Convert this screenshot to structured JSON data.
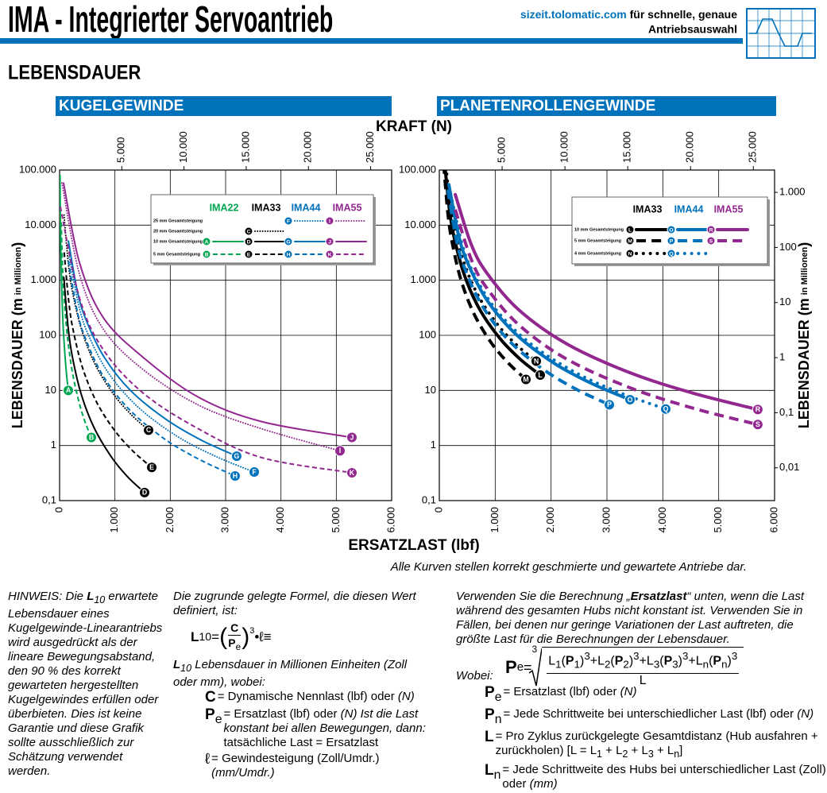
{
  "header": {
    "title": "IMA - Integrierter Servoantrieb",
    "url": "sizeit.tolomatic.com",
    "tagline_1": " für schnelle, genaue",
    "tagline_2": "Antriebsauswahl"
  },
  "section": "LEBENSDAUER",
  "shared_axis_labels": {
    "top": "KRAFT (N)",
    "bottom": "ERSATZLAST (lbf)"
  },
  "footnote": "Alle Kurven stellen korrekt geschmierte und gewartete Antriebe dar.",
  "chart_data": [
    {
      "type": "line",
      "title": "KUGELGEWINDE",
      "y_scale": "log",
      "grid": true,
      "line_width": 2,
      "xlim": [
        0,
        6000
      ],
      "xticks": [
        0,
        {
          "value": 1000,
          "label": "1.000"
        },
        {
          "value": 2000,
          "label": "2.000"
        },
        {
          "value": 3000,
          "label": "3.000"
        },
        {
          "value": 4000,
          "label": "4.000"
        },
        {
          "value": 5000,
          "label": "5.000"
        },
        {
          "value": 6000,
          "label": "6.000"
        }
      ],
      "x2lim": [
        0,
        26689
      ],
      "x2ticks": [
        {
          "value": 5000,
          "label": "5.000"
        },
        {
          "value": 10000,
          "label": "10.000"
        },
        {
          "value": 15000,
          "label": "15.000"
        },
        {
          "value": 20000,
          "label": "20.000"
        },
        {
          "value": 25000,
          "label": "25.000"
        }
      ],
      "ylim": [
        0.1,
        100000
      ],
      "yticks": [
        {
          "value": 0.1,
          "label": "0,1"
        },
        1,
        10,
        100,
        {
          "value": 1000,
          "label": "1.000"
        },
        {
          "value": 10000,
          "label": "10.000"
        },
        {
          "value": 100000,
          "label": "100.000"
        }
      ],
      "y_label": [
        "LEBENSDAUER (m",
        "in Millionen",
        ")"
      ],
      "legend_rows": [
        {
          "label": "25 mm Gesamtsteigung",
          "dash": "dotted"
        },
        {
          "label": "20 mm Gesamtsteigung",
          "dash": "dotted"
        },
        {
          "label": "10 mm Gesamtsteigung",
          "dash": "solid"
        },
        {
          "label": "5 mm Gesamtsteigung",
          "dash": "dashed"
        }
      ],
      "models": [
        {
          "name": "IMA22",
          "color": "#00a651",
          "curves": [
            {
              "label": "A",
              "lead": "10 mm Gesamtsteigung",
              "x": [
                8,
                16,
                24,
                40,
                63,
                95,
                126,
                158
              ],
              "values": [
                80000,
                10000,
                2960,
                640,
                156,
                46.3,
                19.5,
                10
              ]
            },
            {
              "label": "B",
              "lead": "5 mm Gesamtsteigung",
              "x": [
                29,
                57,
                86,
                144,
                230,
                344,
                459,
                574
              ],
              "values": [
                11200,
                1400,
                414,
                90,
                21.8,
                6.5,
                2.7,
                1.4
              ]
            }
          ]
        },
        {
          "name": "IMA33",
          "color": "#000000",
          "curves": [
            {
              "label": "C",
              "lead": "20 mm Gesamtsteigung",
              "x": [
                80,
                161,
                241,
                402,
                643,
                965,
                1286,
                1608
              ],
              "values": [
                15200,
                1900,
                562,
                122,
                29.6,
                8.8,
                3.7,
                1.9
              ]
            },
            {
              "label": "D",
              "lead": "10 mm Gesamtsteigung",
              "x": [
                77,
                154,
                230,
                384,
                614,
                922,
                1229,
                1536
              ],
              "values": [
                1120,
                140,
                41.4,
                9,
                2.2,
                0.65,
                0.27,
                0.14
              ]
            },
            {
              "label": "E",
              "lead": "5 mm Gesamtsteigung",
              "x": [
                83,
                167,
                250,
                416,
                666,
                999,
                1332,
                1665
              ],
              "values": [
                3200,
                400,
                118,
                25.6,
                6.2,
                1.85,
                0.78,
                0.4
              ]
            }
          ]
        },
        {
          "name": "IMA44",
          "color": "#0072bc",
          "curves": [
            {
              "label": "F",
              "lead": "25 mm Gesamtsteigung",
              "x": [
                176,
                352,
                528,
                879,
                1407,
                2110,
                2814,
                3517
              ],
              "values": [
                2640,
                330,
                98,
                21,
                5.1,
                1.5,
                0.64,
                0.33
              ]
            },
            {
              "label": "G",
              "lead": "10 mm Gesamtsteigung",
              "x": [
                160,
                320,
                480,
                800,
                1280,
                1920,
                2560,
                3200
              ],
              "values": [
                5120,
                640,
                189,
                41,
                10,
                3,
                1.25,
                0.64
              ]
            },
            {
              "label": "H",
              "lead": "5 mm Gesamtsteigung",
              "x": [
                159,
                317,
                476,
                793,
                1269,
                1903,
                2538,
                3172
              ],
              "values": [
                2240,
                280,
                83,
                17.9,
                4.4,
                1.3,
                0.55,
                0.28
              ]
            }
          ]
        },
        {
          "name": "IMA55",
          "color": "#92278f",
          "curves": [
            {
              "label": "I",
              "lead": "25 mm Gesamtsteigung",
              "x": [
                43,
                359,
                789,
                1507,
                2512,
                3660,
                5067
              ],
              "values": [
                58000,
                1300,
                130,
                24,
                5.4,
                2,
                0.8
              ]
            },
            {
              "label": "J",
              "lead": "10 mm Gesamtsteigung",
              "x": [
                72,
                359,
                789,
                1507,
                2512,
                3660,
                5282
              ],
              "values": [
                58000,
                2100,
                210,
                40,
                7.5,
                2.7,
                1.4
              ]
            },
            {
              "label": "K",
              "lead": "5 mm Gesamtsteigung",
              "x": [
                14,
                359,
                789,
                1507,
                2512,
                3660,
                5282
              ],
              "values": [
                21700,
                480,
                55,
                9,
                2,
                0.6,
                0.32
              ]
            }
          ]
        }
      ]
    },
    {
      "type": "line",
      "title": "PLANETENROLLENGEWINDE",
      "y_scale": "log",
      "y2_scale": "log",
      "grid": true,
      "line_width": 4,
      "xlim": [
        0,
        6000
      ],
      "xticks": [
        0,
        {
          "value": 1000,
          "label": "1.000"
        },
        {
          "value": 2000,
          "label": "2.000"
        },
        {
          "value": 3000,
          "label": "3.000"
        },
        {
          "value": 4000,
          "label": "4.000"
        },
        {
          "value": 5000,
          "label": "5.000"
        },
        {
          "value": 6000,
          "label": "6.000"
        }
      ],
      "x2lim": [
        0,
        26689
      ],
      "x2ticks": [
        {
          "value": 5000,
          "label": "5.000"
        },
        {
          "value": 10000,
          "label": "10.000"
        },
        {
          "value": 15000,
          "label": "15.000"
        },
        {
          "value": 20000,
          "label": "20.000"
        },
        {
          "value": 25000,
          "label": "25.000"
        }
      ],
      "ylim": [
        0.1,
        100000
      ],
      "yticks": [
        {
          "value": 0.1,
          "label": "0,1"
        },
        1,
        10,
        100,
        {
          "value": 1000,
          "label": "1.000"
        },
        {
          "value": 10000,
          "label": "10.000"
        },
        {
          "value": 100000,
          "label": "100.000"
        }
      ],
      "y2lim": [
        0.00254,
        2540
      ],
      "y2ticks": [
        {
          "value": 0.01,
          "label": "0,01"
        },
        {
          "value": 0.1,
          "label": "0,1"
        },
        1,
        10,
        100,
        {
          "value": 1000,
          "label": "1.000"
        }
      ],
      "y2_label": [
        "LEBENSDAUER (m",
        "in Millionen",
        ")"
      ],
      "legend_rows": [
        {
          "label": "10 mm Gesamtsteigung",
          "dash": "solid"
        },
        {
          "label": "5 mm Gesamtsteigung",
          "dash": "dashed"
        },
        {
          "label": "4 mm Gesamtsteigung",
          "dash": "dotted"
        }
      ],
      "models": [
        {
          "name": "IMA33",
          "color": "#000000",
          "curves": [
            {
              "label": "L",
              "lead": "10 mm Gesamtsteigung",
              "x": [
                90,
                181,
                271,
                452,
                722,
                1084,
                1445,
                1806
              ],
              "values": [
                152000,
                19000,
                5620,
                1216,
                296,
                88,
                37,
                19
              ]
            },
            {
              "label": "M",
              "lead": "5 mm Gesamtsteigung",
              "x": [
                78,
                155,
                233,
                388,
                620,
                930,
                1240,
                1550
              ],
              "values": [
                126400,
                15800,
                4680,
                1011,
                246,
                73,
                31,
                15.8
              ]
            },
            {
              "label": "N",
              "lead": "4 mm Gesamtsteigung",
              "x": [
                87,
                174,
                260,
                434,
                694,
                1041,
                1388,
                1735
              ],
              "values": [
                272000,
                34000,
                10060,
                2176,
                530,
                157,
                66,
                34
              ]
            }
          ]
        },
        {
          "name": "IMA44",
          "color": "#0072bc",
          "curves": [
            {
              "label": "O",
              "lead": "10 mm Gesamtsteigung",
              "x": [
                171,
                341,
                512,
                853,
                1365,
                2047,
                2730,
                3412
              ],
              "values": [
                54400,
                6800,
                2010,
                435,
                106,
                31.5,
                13.3,
                6.8
              ]
            },
            {
              "label": "P",
              "lead": "5 mm Gesamtsteigung",
              "x": [
                152,
                304,
                456,
                761,
                1217,
                1826,
                2434,
                3043
              ],
              "values": [
                44000,
                5500,
                1628,
                352,
                86,
                25.5,
                10.7,
                5.5
              ]
            },
            {
              "label": "Q",
              "lead": "4 mm Gesamtsteigung",
              "x": [
                203,
                405,
                608,
                1013,
                1621,
                2431,
                3242,
                4052
              ],
              "values": [
                36800,
                4600,
                1360,
                294,
                72,
                21.3,
                9,
                4.6
              ]
            }
          ]
        },
        {
          "name": "IMA55",
          "color": "#92278f",
          "curves": [
            {
              "label": "R",
              "lead": "10 mm Gesamtsteigung",
              "x": [
                285,
                570,
                855,
                1425,
                2280,
                3420,
                4560,
                5700
              ],
              "values": [
                36000,
                4500,
                1332,
                288,
                70,
                20.8,
                8.8,
                4.5
              ]
            },
            {
              "label": "S",
              "lead": "5 mm Gesamtsteigung",
              "x": [
                285,
                570,
                855,
                1425,
                2280,
                3420,
                4560,
                5700
              ],
              "values": [
                19200,
                2400,
                710,
                154,
                37,
                11.1,
                4.7,
                2.4
              ]
            }
          ]
        }
      ]
    }
  ],
  "notes": {
    "hinweis": [
      "HINWEIS: Die ",
      {
        "b": "L"
      },
      {
        "sub": "10"
      },
      " erwartete Lebensdauer eines Kugelgewinde-Linearantriebs wird ausgedrückt als der lineare Bewegungsabstand, den 90 % des korrekt gewarteten hergestellten Kugelgewindes erfüllen oder überbieten. Dies ist keine Garantie und diese Grafik sollte ausschließlich zur Schätzung verwendet werden."
    ],
    "formula_intro": [
      "Die zugrunde gelegte Formel, die diesen Wert definiert, ist:"
    ],
    "formula": {
      "lhs": "L",
      "lhs_sub": "10",
      "eq": " = ",
      "open": "(",
      "num": "C",
      "den": "P",
      "den_sub": "e",
      "close": ")",
      "exp": "3",
      "dot": " • ",
      "lead": "ℓ",
      "equiv": " ≡"
    },
    "l10_text": [
      {
        "b": "L"
      },
      {
        "sub": "10"
      },
      " Lebensdauer in Millionen Einheiten (Zoll oder mm), wobei:"
    ],
    "definitions": [
      {
        "sym": [
          {
            "b": "C"
          }
        ],
        "text": [
          " = Dynamische Nennlast (lbf) oder ",
          {
            "i": "(N)"
          }
        ]
      },
      {
        "sym": [
          {
            "b": "P"
          },
          {
            "sub": "e"
          }
        ],
        "text": [
          " = Ersatzlast (lbf) oder ",
          {
            "i": "(N) Ist die Last konstant bei allen Bewegungen, dann:"
          },
          " tatsächliche Last = Ersatzlast"
        ]
      },
      {
        "sym": [
          "ℓ"
        ],
        "text": [
          " = Gewindesteigung (Zoll/Umdr.) ",
          {
            "i": "(mm/Umdr.)"
          }
        ]
      }
    ],
    "ersatz_text": [
      "Verwenden Sie die Berechnung „",
      {
        "b": "Ersatzlast"
      },
      "“ unten, wenn die Last während des gesamten Hubs nicht konstant ist. Verwenden Sie in Fällen, bei denen nur geringe Variationen der Last auftreten, die größte Last für die Berechnungen der Lebensdauer."
    ],
    "wobei": "Wobei:",
    "ersatz_formula": {
      "lhs": "P",
      "lhs_sub": "e",
      "eq": "= ",
      "root": "3",
      "numerator": [
        "L",
        {
          "sub": "1"
        },
        "(",
        {
          "b": "P"
        },
        {
          "sub": "1"
        },
        ")",
        {
          "sup": "3"
        },
        "+L",
        {
          "sub": "2"
        },
        "(",
        {
          "b": "P"
        },
        {
          "sub": "2"
        },
        ")",
        {
          "sup": "3"
        },
        "+L",
        {
          "sub": "3"
        },
        "(",
        {
          "b": "P"
        },
        {
          "sub": "3"
        },
        ")",
        {
          "sup": "3"
        },
        "+L",
        {
          "sub": "n"
        },
        "(",
        {
          "b": "P"
        },
        {
          "sub": "n"
        },
        ")",
        {
          "sup": "3"
        }
      ],
      "denominator": "L"
    },
    "ersatz_definitions": [
      {
        "sym": [
          {
            "b": "P"
          },
          {
            "sub": "e"
          }
        ],
        "text": [
          "= Ersatzlast (lbf) oder ",
          {
            "i": "(N)"
          }
        ]
      },
      {
        "sym": [
          {
            "b": "P"
          },
          {
            "sub": "n"
          }
        ],
        "text": [
          "= Jede Schrittweite bei unterschiedlicher Last (lbf) oder ",
          {
            "i": "(N)"
          }
        ]
      },
      {
        "sym": [
          {
            "b": "L"
          }
        ],
        "text": [
          "= Pro Zyklus zurückgelegte Gesamtdistanz (Hub ausfahren + zurückholen) [L = L",
          {
            "sub": "1"
          },
          " + L",
          {
            "sub": "2"
          },
          " + L",
          {
            "sub": "3"
          },
          " + L",
          {
            "sub": "n"
          },
          "]"
        ]
      },
      {
        "sym": [
          {
            "b": "L"
          },
          {
            "sub": "n"
          }
        ],
        "text": [
          "= Jede Schrittweite des Hubs bei unterschiedlicher Last (Zoll) oder ",
          {
            "i": "(mm)"
          }
        ]
      }
    ]
  }
}
